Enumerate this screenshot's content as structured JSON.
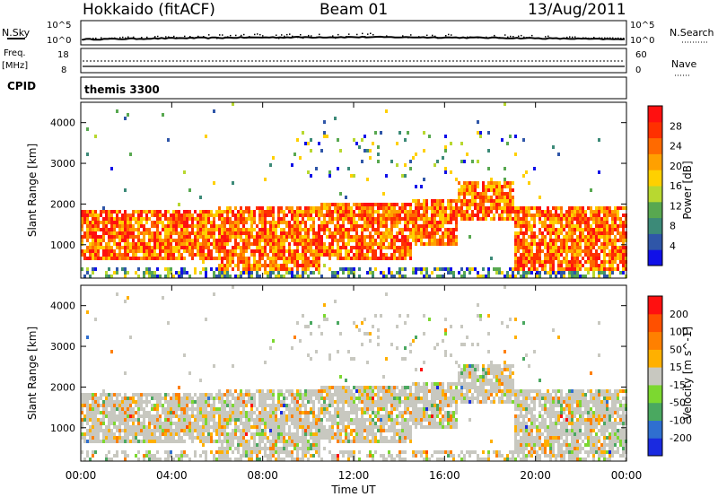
{
  "header": {
    "radar": "Hokkaido (fitACF)",
    "beam": "Beam 01",
    "date": "13/Aug/2011"
  },
  "top_panels": {
    "nsky_label": "N.Sky",
    "nsky_ticks": [
      "10^5",
      "10^0"
    ],
    "nsearch_label": "N.Search",
    "nsearch_ticks": [
      "10^5",
      "10^0"
    ],
    "freq_label_1": "Freq.",
    "freq_label_2": "[MHz]",
    "freq_ticks": [
      "18",
      "8"
    ],
    "nave_label": "Nave",
    "nave_ticks": [
      "60",
      "0"
    ],
    "cpid_label": "CPID",
    "cpid_value": "themis 3300"
  },
  "chart_data": [
    {
      "type": "heatmap",
      "title": "",
      "xlabel": "",
      "ylabel": "Slant Range [km]",
      "ylim": [
        180,
        4500
      ],
      "y_ticks": [
        "1000",
        "2000",
        "3000",
        "4000"
      ],
      "x_ticks": [
        "00:00",
        "04:00",
        "08:00",
        "12:00",
        "16:00",
        "20:00",
        "00:00"
      ],
      "colorbar": {
        "label": "Power [dB]",
        "ticks": [
          "4",
          "8",
          "12",
          "16",
          "20",
          "24",
          "28"
        ],
        "colors": [
          "#1010e8",
          "#2f56a8",
          "#3c8a78",
          "#58a850",
          "#b8d830",
          "#ffd000",
          "#ffa000",
          "#ff6a00",
          "#ff3000",
          "#ff1010"
        ]
      },
      "echo_regions": [
        {
          "t0": 0.0,
          "t1": 6.0,
          "r0": 700,
          "r1": 1900
        },
        {
          "t0": 6.0,
          "t1": 10.5,
          "r0": 400,
          "r1": 2000
        },
        {
          "t0": 10.5,
          "t1": 14.5,
          "r0": 700,
          "r1": 2100
        },
        {
          "t0": 14.5,
          "t1": 16.5,
          "r0": 1000,
          "r1": 2200
        },
        {
          "t0": 16.5,
          "t1": 19.0,
          "r0": 1600,
          "r1": 2600
        },
        {
          "t0": 19.0,
          "t1": 24.0,
          "r0": 400,
          "r1": 2000
        }
      ]
    },
    {
      "type": "heatmap",
      "title": "",
      "xlabel": "Time UT",
      "ylabel": "Slant Range [km]",
      "ylim": [
        180,
        4500
      ],
      "y_ticks": [
        "1000",
        "2000",
        "3000",
        "4000"
      ],
      "x_ticks": [
        "00:00",
        "04:00",
        "08:00",
        "12:00",
        "16:00",
        "20:00",
        "00:00"
      ],
      "colorbar": {
        "label": "Velocity [m s^-1]",
        "ticks": [
          "200",
          "100",
          "50",
          "15",
          "-15",
          "-50",
          "-100",
          "-200"
        ],
        "colors": [
          "#1a2ae0",
          "#2f6fd0",
          "#4aa860",
          "#7cd830",
          "#c8c8c0",
          "#ffb000",
          "#ff8000",
          "#ff5000",
          "#ff1010"
        ]
      }
    }
  ]
}
